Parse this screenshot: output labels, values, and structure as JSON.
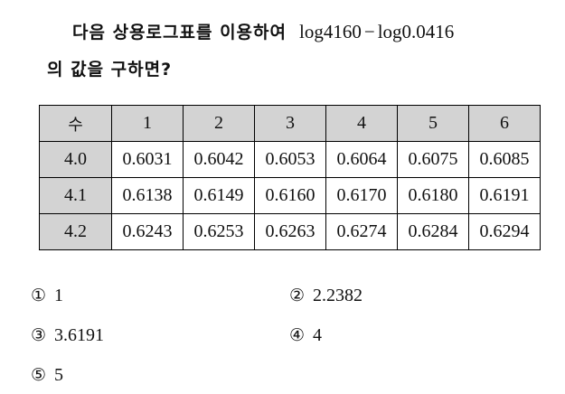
{
  "question": {
    "line1_text": "다음 상용로그표를 이용하여",
    "expr_a": "log4160",
    "expr_op": "−",
    "expr_b": "log0.0416",
    "line2_text": "의 값을 구하면?"
  },
  "table": {
    "corner_label": "수",
    "columns": [
      "1",
      "2",
      "3",
      "4",
      "5",
      "6"
    ],
    "rows": [
      {
        "label": "4.0",
        "values": [
          "0.6031",
          "0.6042",
          "0.6053",
          "0.6064",
          "0.6075",
          "0.6085"
        ]
      },
      {
        "label": "4.1",
        "values": [
          "0.6138",
          "0.6149",
          "0.6160",
          "0.6170",
          "0.6180",
          "0.6191"
        ]
      },
      {
        "label": "4.2",
        "values": [
          "0.6243",
          "0.6253",
          "0.6263",
          "0.6274",
          "0.6284",
          "0.6294"
        ]
      }
    ]
  },
  "choices": [
    {
      "num": "①",
      "value": "1"
    },
    {
      "num": "②",
      "value": "2.2382"
    },
    {
      "num": "③",
      "value": "3.6191"
    },
    {
      "num": "④",
      "value": "4"
    },
    {
      "num": "⑤",
      "value": "5"
    }
  ]
}
